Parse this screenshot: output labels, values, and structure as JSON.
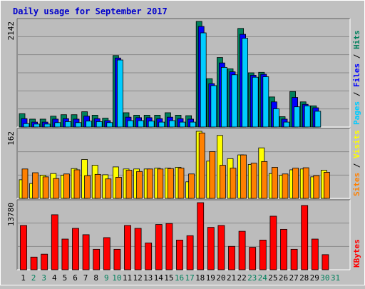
{
  "colors": {
    "background": "#c0c0c0",
    "plot_background": "#bcbcbc",
    "grid": "#8a8a8a",
    "title": "#0000cc",
    "hits": "#00805c",
    "files": "#0000ff",
    "pages": "#00ccff",
    "visits": "#ffff00",
    "sites": "#ff8000",
    "kbytes": "#ff0000",
    "weekend_day": "#00805c",
    "weekday": "#000000"
  },
  "chart_data": {
    "type": "bar",
    "title": "Daily usage for September 2017",
    "x": [
      "1",
      "2",
      "3",
      "4",
      "5",
      "6",
      "7",
      "8",
      "9",
      "10",
      "11",
      "12",
      "13",
      "14",
      "15",
      "16",
      "17",
      "18",
      "19",
      "20",
      "21",
      "22",
      "23",
      "24",
      "25",
      "26",
      "27",
      "28",
      "29",
      "30",
      "31"
    ],
    "weekend_days": [
      "2",
      "3",
      "9",
      "10",
      "16",
      "17",
      "23",
      "24",
      "30",
      "31"
    ],
    "panels": [
      {
        "name": "top",
        "ymax": 2142,
        "ymax_label": "2142",
        "right_labels": [
          "Pages",
          "Files",
          "Hits"
        ],
        "series": [
          {
            "name": "Hits",
            "color": "hits",
            "values": [
              270,
              160,
              160,
              220,
              250,
              250,
              310,
              240,
              180,
              1450,
              290,
              240,
              240,
              240,
              290,
              240,
              230,
              2142,
              980,
              1410,
              1180,
              2000,
              1100,
              1110,
              610,
              210,
              720,
              510,
              430,
              0,
              0
            ]
          },
          {
            "name": "Files",
            "color": "files",
            "values": [
              170,
              100,
              100,
              160,
              170,
              160,
              220,
              170,
              130,
              1400,
              200,
              190,
              190,
              170,
              200,
              170,
              160,
              2040,
              880,
              1300,
              1120,
              1880,
              1050,
              1070,
              510,
              160,
              600,
              460,
              390,
              0,
              0
            ]
          },
          {
            "name": "Pages",
            "color": "pages",
            "values": [
              70,
              60,
              60,
              90,
              110,
              90,
              120,
              110,
              90,
              1360,
              130,
              130,
              120,
              100,
              130,
              100,
              100,
              1910,
              840,
              1210,
              1060,
              1800,
              1010,
              1020,
              370,
              100,
              410,
              430,
              320,
              0,
              0
            ]
          }
        ]
      },
      {
        "name": "middle",
        "ymax": 162,
        "ymax_label": "162",
        "right_labels": [
          "Sites",
          "Visits"
        ],
        "series": [
          {
            "name": "Visits",
            "color": "visits",
            "values": [
              45,
              36,
              56,
              60,
              56,
              72,
              94,
              80,
              57,
              76,
              71,
              71,
              71,
              73,
              73,
              75,
              40,
              162,
              90,
              152,
              96,
              105,
              82,
              122,
              60,
              56,
              69,
              71,
              52,
              68,
              0
            ]
          },
          {
            "name": "Sites",
            "color": "sites",
            "values": [
              71,
              62,
              52,
              48,
              59,
              69,
              55,
              58,
              47,
              51,
              68,
              65,
              71,
              71,
              72,
              73,
              59,
              158,
              113,
              80,
              73,
              105,
              85,
              89,
              75,
              59,
              73,
              74,
              55,
              63,
              0
            ]
          }
        ]
      },
      {
        "name": "bottom",
        "ymax": 13780,
        "ymax_label": "13780",
        "right_labels": [
          "KBytes"
        ],
        "series": [
          {
            "name": "KBytes",
            "color": "kbytes",
            "values": [
              9100,
              2600,
              3200,
              11300,
              6300,
              8500,
              7200,
              4200,
              6600,
              4200,
              9100,
              8500,
              5500,
              9300,
              9500,
              6100,
              7000,
              13780,
              8700,
              9100,
              4800,
              7900,
              4600,
              6100,
              11000,
              8300,
              4200,
              13200,
              6300,
              3100,
              0
            ]
          }
        ]
      }
    ]
  }
}
